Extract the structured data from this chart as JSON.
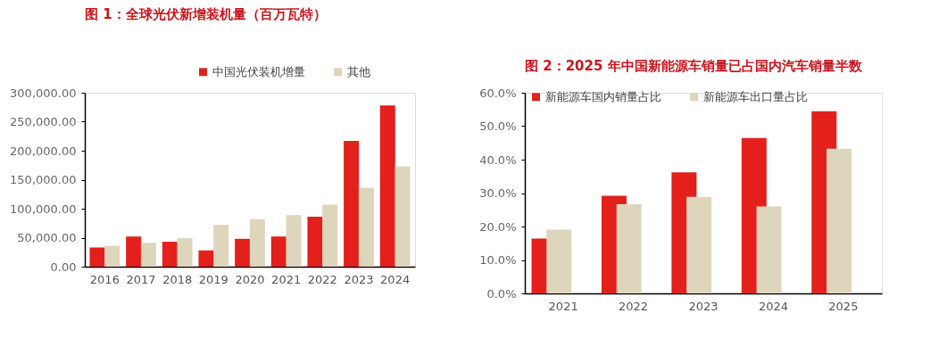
{
  "chart_data": [
    {
      "type": "bar",
      "title": "图 1：全球光伏新增装机量（百万瓦特）",
      "categories": [
        "2016",
        "2017",
        "2018",
        "2019",
        "2020",
        "2021",
        "2022",
        "2023",
        "2024"
      ],
      "series": [
        {
          "name": "中国光伏装机增量",
          "color": "#e3201b",
          "values": [
            33000,
            52000,
            43000,
            28000,
            48000,
            52000,
            86000,
            217000,
            278000
          ]
        },
        {
          "name": "其他",
          "color": "#ded5bd",
          "values": [
            36000,
            41000,
            49000,
            72000,
            82000,
            89000,
            107000,
            136000,
            173000
          ]
        }
      ],
      "ylim": [
        0,
        300000
      ],
      "yticks": [
        {
          "value": 0,
          "label": "0.00"
        },
        {
          "value": 50000,
          "label": "50,000.00"
        },
        {
          "value": 100000,
          "label": "100,000.00"
        },
        {
          "value": 150000,
          "label": "150,000.00"
        },
        {
          "value": 200000,
          "label": "200,000.00"
        },
        {
          "value": 250000,
          "label": "250,000.00"
        },
        {
          "value": 300000,
          "label": "300,000.00"
        }
      ],
      "grid": false,
      "legend": "top right"
    },
    {
      "type": "bar",
      "title": "图 2：2025 年中国新能源车销量已占国内汽车销量半数",
      "categories": [
        "2021",
        "2022",
        "2023",
        "2024",
        "2025"
      ],
      "series": [
        {
          "name": "新能源车国内销量占比",
          "color": "#e3201b",
          "values": [
            16.4,
            29.2,
            36.2,
            46.5,
            54.5
          ]
        },
        {
          "name": "新能源车出口量占比",
          "color": "#ded5bd",
          "values": [
            19.1,
            26.7,
            28.9,
            26.0,
            43.3
          ]
        }
      ],
      "ylim": [
        0,
        60
      ],
      "yticks": [
        {
          "value": 0,
          "label": "0.0%"
        },
        {
          "value": 10,
          "label": "10.0%"
        },
        {
          "value": 20,
          "label": "20.0%"
        },
        {
          "value": 30,
          "label": "30.0%"
        },
        {
          "value": 40,
          "label": "40.0%"
        },
        {
          "value": 50,
          "label": "50.0%"
        },
        {
          "value": 60,
          "label": "60.0%"
        }
      ],
      "grid": false,
      "legend": "top"
    }
  ]
}
